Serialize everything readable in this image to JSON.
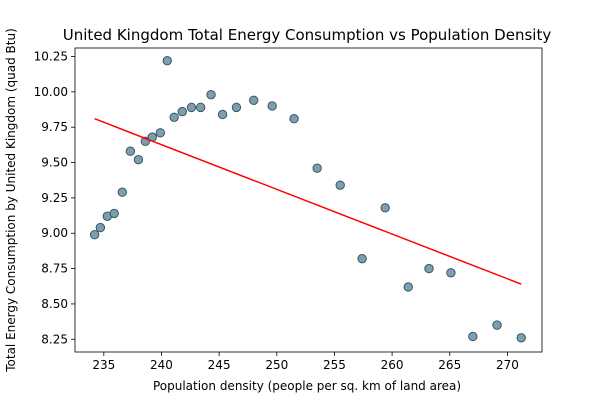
{
  "chart_data": {
    "type": "scatter",
    "title": "United Kingdom Total Energy Consumption vs Population Density",
    "xlabel": "Population density (people per sq. km of land area)",
    "ylabel": "Total Energy Consumption by United Kingdom (quad Btu)",
    "xlim": [
      232.5,
      273.0
    ],
    "ylim": [
      8.16,
      10.31
    ],
    "xticks": [
      235,
      240,
      245,
      250,
      255,
      260,
      265,
      270
    ],
    "xtick_labels": [
      "235",
      "240",
      "245",
      "250",
      "255",
      "260",
      "265",
      "270"
    ],
    "yticks": [
      8.25,
      8.5,
      8.75,
      9.0,
      9.25,
      9.5,
      9.75,
      10.0,
      10.25
    ],
    "ytick_labels": [
      "8.25",
      "8.50",
      "8.75",
      "9.00",
      "9.25",
      "9.50",
      "9.75",
      "10.00",
      "10.25"
    ],
    "points": [
      {
        "x": 234.2,
        "y": 8.99
      },
      {
        "x": 234.7,
        "y": 9.04
      },
      {
        "x": 235.3,
        "y": 9.12
      },
      {
        "x": 235.9,
        "y": 9.14
      },
      {
        "x": 236.6,
        "y": 9.29
      },
      {
        "x": 237.3,
        "y": 9.58
      },
      {
        "x": 238.0,
        "y": 9.52
      },
      {
        "x": 238.6,
        "y": 9.65
      },
      {
        "x": 239.2,
        "y": 9.68
      },
      {
        "x": 239.9,
        "y": 9.71
      },
      {
        "x": 240.5,
        "y": 10.22
      },
      {
        "x": 241.1,
        "y": 9.82
      },
      {
        "x": 241.8,
        "y": 9.86
      },
      {
        "x": 242.6,
        "y": 9.89
      },
      {
        "x": 243.4,
        "y": 9.89
      },
      {
        "x": 244.3,
        "y": 9.98
      },
      {
        "x": 245.3,
        "y": 9.84
      },
      {
        "x": 246.5,
        "y": 9.89
      },
      {
        "x": 248.0,
        "y": 9.94
      },
      {
        "x": 249.6,
        "y": 9.9
      },
      {
        "x": 251.5,
        "y": 9.81
      },
      {
        "x": 253.5,
        "y": 9.46
      },
      {
        "x": 255.5,
        "y": 9.34
      },
      {
        "x": 257.4,
        "y": 8.82
      },
      {
        "x": 259.4,
        "y": 9.18
      },
      {
        "x": 261.4,
        "y": 8.62
      },
      {
        "x": 263.2,
        "y": 8.75
      },
      {
        "x": 265.1,
        "y": 8.72
      },
      {
        "x": 267.0,
        "y": 8.27
      },
      {
        "x": 269.1,
        "y": 8.35
      },
      {
        "x": 271.2,
        "y": 8.26
      }
    ],
    "trendline": {
      "x": [
        234.2,
        271.2
      ],
      "y": [
        9.81,
        8.64
      ]
    },
    "colors": {
      "marker_fill": "#7c9fb0",
      "marker_edge": "#3b5566",
      "trendline": "#ff0000"
    },
    "grid": false,
    "legend": "none"
  }
}
